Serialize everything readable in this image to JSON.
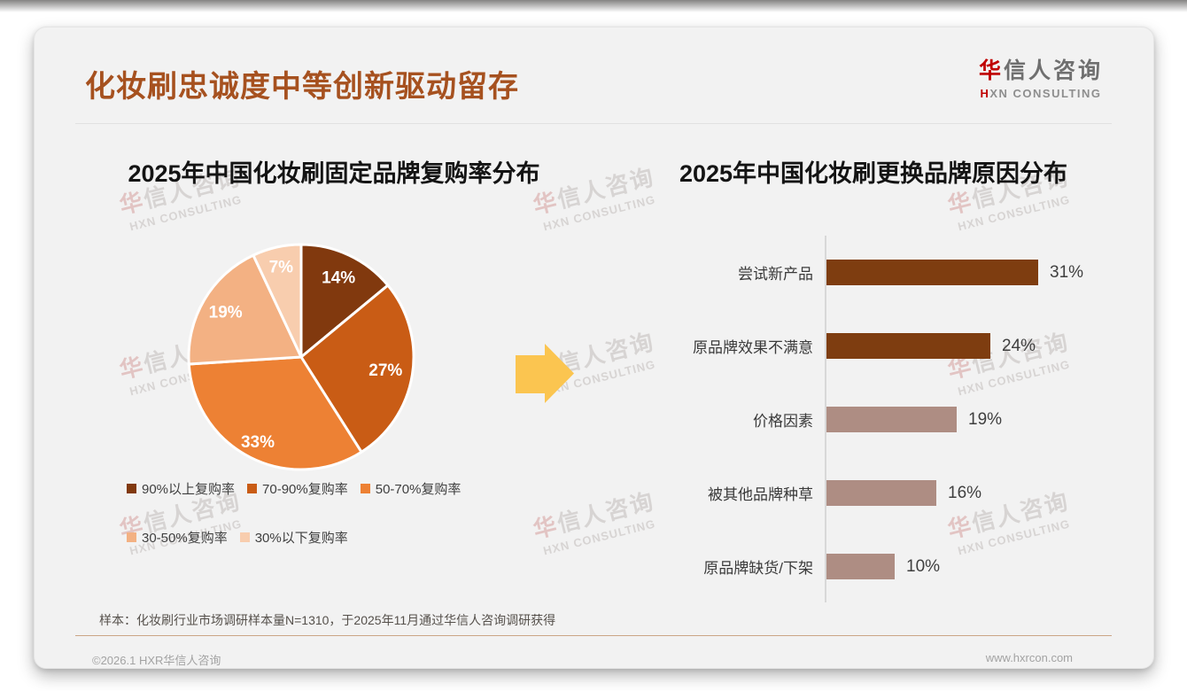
{
  "header": {
    "title": "化妆刷忠诚度中等创新驱动留存",
    "logo": {
      "cn_first": "华",
      "cn_rest": "信人咨询",
      "en_first": "H",
      "en_rest": "XN CONSULTING"
    }
  },
  "watermark": {
    "line1_first": "华",
    "line1_rest": "信人咨询",
    "line2": "HXN CONSULTING"
  },
  "arrow_color": "#FBC550",
  "chart_data": [
    {
      "type": "pie",
      "title": "2025年中国化妆刷固定品牌复购率分布",
      "labels": [
        "90%以上复购率",
        "70-90%复购率",
        "50-70%复购率",
        "30-50%复购率",
        "30%以下复购率"
      ],
      "values": [
        14,
        27,
        33,
        19,
        7
      ],
      "value_labels": [
        "14%",
        "27%",
        "33%",
        "19%",
        "7%"
      ],
      "colors": [
        "#81390E",
        "#C95C15",
        "#ED8134",
        "#F3B183",
        "#F8CDAE"
      ],
      "legend_position": "bottom",
      "start_angle": "top",
      "direction": "clockwise"
    },
    {
      "type": "bar",
      "orientation": "horizontal",
      "title": "2025年中国化妆刷更换品牌原因分布",
      "categories": [
        "尝试新产品",
        "原品牌效果不满意",
        "价格因素",
        "被其他品牌种草",
        "原品牌缺货/下架"
      ],
      "values": [
        31,
        24,
        19,
        16,
        10
      ],
      "value_labels": [
        "31%",
        "24%",
        "19%",
        "16%",
        "10%"
      ],
      "bar_colors": [
        "#7E3D10",
        "#7E3D10",
        "#AE8D83",
        "#AE8D83",
        "#AE8D83"
      ],
      "xlim": [
        0,
        35
      ],
      "grid": false,
      "legend_position": "none"
    }
  ],
  "footer": {
    "sample_note": "样本：化妆刷行业市场调研样本量N=1310，于2025年11月通过华信人咨询调研获得",
    "copyright": "©2026.1 HXR华信人咨询",
    "website": "www.hxrcon.com"
  }
}
